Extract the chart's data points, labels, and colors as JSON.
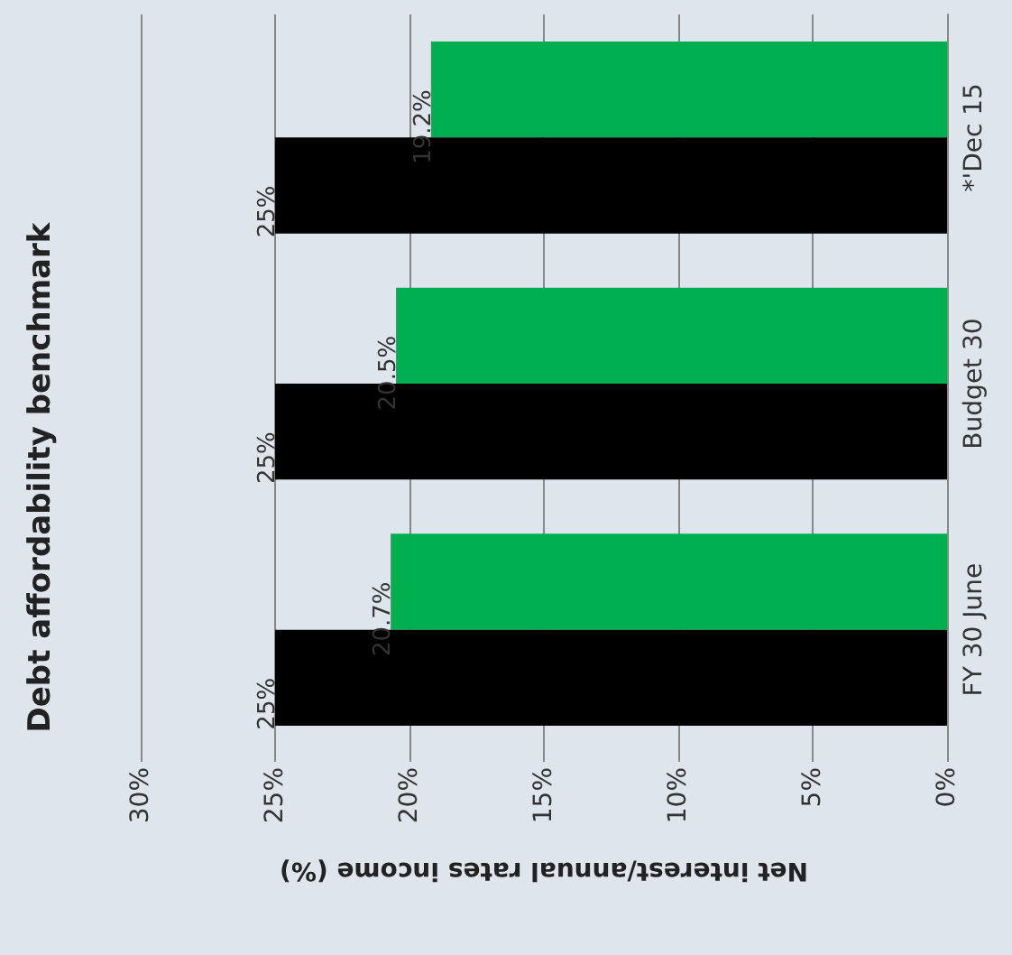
{
  "chart_data": {
    "type": "bar",
    "orientation": "horizontal",
    "title": "Debt affordability benchmark",
    "xlabel": "Net interest/annual rates income (%)",
    "categories": [
      "*'Dec 15",
      "Budget 30",
      "FY 30 June"
    ],
    "series": [
      {
        "color": "#00b050",
        "values": [
          19.2,
          20.5,
          20.7
        ],
        "value_labels": [
          "19.2%",
          "20.5%",
          "20.7%"
        ]
      },
      {
        "color": "#000000",
        "values": [
          25,
          25,
          25
        ],
        "value_labels": [
          "25%",
          "25%",
          "25%"
        ]
      }
    ],
    "xlim": [
      30,
      0
    ],
    "xticks": [
      {
        "value": 30,
        "label": "30%"
      },
      {
        "value": 25,
        "label": "25%"
      },
      {
        "value": 20,
        "label": "20%"
      },
      {
        "value": 15,
        "label": "15%"
      },
      {
        "value": 10,
        "label": "10%"
      },
      {
        "value": 5,
        "label": "5%"
      },
      {
        "value": 0,
        "label": "0%"
      }
    ],
    "grid": "x"
  }
}
